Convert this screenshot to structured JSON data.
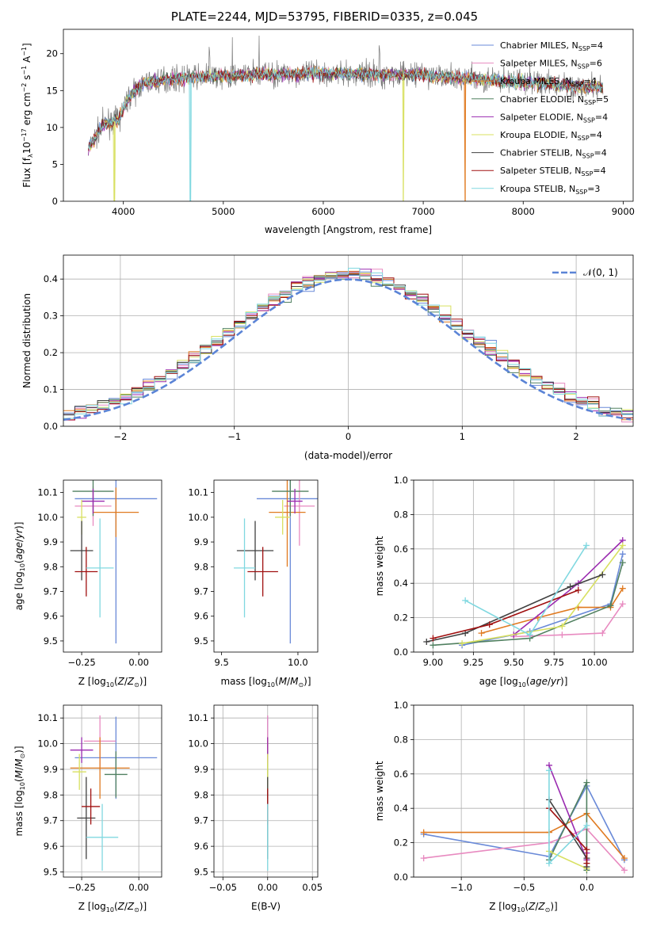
{
  "title": "PLATE=2244, MJD=53795, FIBERID=0335, z=0.045",
  "model_colors": {
    "Chabrier MILES": "#6a8ad8",
    "Salpeter MILES": "#e88ac0",
    "Kroupa MILES": "#e07a20",
    "Chabrier ELODIE": "#508060",
    "Salpeter ELODIE": "#9a2ab0",
    "Kroupa ELODIE": "#d8e060",
    "Chabrier STELIB": "#404040",
    "Salpeter STELIB": "#a01010",
    "Kroupa STELIB": "#80d8e0"
  },
  "chart_data": [
    {
      "id": "spectrum",
      "type": "line",
      "title": "PLATE=2244, MJD=53795, FIBERID=0335, z=0.045",
      "xlabel": "wavelength [Angstrom, rest frame]",
      "ylabel": "Flux [f_λ10^-17 erg cm^-2 s^-1 A^-1]",
      "xlim": [
        3400,
        9100
      ],
      "ylim": [
        0,
        23.3
      ],
      "xticks": [
        4000,
        5000,
        6000,
        7000,
        8000,
        9000
      ],
      "yticks": [
        0,
        5,
        10,
        15,
        20
      ],
      "grid": false,
      "legend_position": "top-right",
      "legend": [
        {
          "label": "Chabrier MILES",
          "nssp": "4"
        },
        {
          "label": "Salpeter MILES",
          "nssp": "6"
        },
        {
          "label": "Kroupa MILES",
          "nssp": "4"
        },
        {
          "label": "Chabrier ELODIE",
          "nssp": "5"
        },
        {
          "label": "Salpeter ELODIE",
          "nssp": "4"
        },
        {
          "label": "Kroupa ELODIE",
          "nssp": "4"
        },
        {
          "label": "Chabrier STELIB",
          "nssp": "4"
        },
        {
          "label": "Salpeter STELIB",
          "nssp": "4"
        },
        {
          "label": "Kroupa STELIB",
          "nssp": "3"
        }
      ],
      "continuum": {
        "wavelength": [
          3650,
          3800,
          3950,
          4050,
          4200,
          4400,
          4700,
          5000,
          5400,
          5800,
          6200,
          6600,
          7000,
          7400,
          7800,
          8200,
          8600,
          8800
        ],
        "flux": [
          7,
          10.5,
          11,
          14,
          16,
          16.5,
          16.8,
          17,
          17.2,
          17.3,
          17.3,
          17.2,
          17.1,
          16.7,
          16.3,
          16,
          15.5,
          15.3
        ]
      },
      "dips": [
        {
          "model": "Kroupa ELODIE",
          "wavelength": 3910
        },
        {
          "model": "Kroupa STELIB",
          "wavelength": 4670
        },
        {
          "model": "Kroupa ELODIE",
          "wavelength": 6800
        },
        {
          "model": "Kroupa MILES",
          "wavelength": 7420
        }
      ]
    },
    {
      "id": "residuals",
      "type": "histogram",
      "xlabel": "(data-model)/error",
      "ylabel": "Normed distribution",
      "xlim": [
        -2.5,
        2.5
      ],
      "ylim": [
        0,
        0.465
      ],
      "xticks": [
        -2,
        -1,
        0,
        1,
        2
      ],
      "yticks": [
        0.0,
        0.1,
        0.2,
        0.3,
        0.4
      ],
      "grid": true,
      "legend_position": "top-right",
      "reference_curve": {
        "label": "𝒩(0, 1)",
        "mean": 0,
        "sigma": 1,
        "color": "#5b84d6"
      },
      "bin_width": 0.1
    },
    {
      "id": "age-vs-z",
      "type": "errorbar",
      "xlabel": "Z [log10(Z/Z⊙)]",
      "ylabel": "age [log10(age/yr)]",
      "xlim": [
        -0.33,
        0.1
      ],
      "ylim": [
        9.455,
        10.15
      ],
      "xticks": [
        -0.25,
        0.0
      ],
      "yticks": [
        9.5,
        9.6,
        9.7,
        9.8,
        9.9,
        10.0,
        10.1
      ],
      "grid": false,
      "points": [
        {
          "model": "Chabrier MILES",
          "x": -0.1,
          "xerr": 0.18,
          "y": 10.075,
          "yerr": 0.585
        },
        {
          "model": "Salpeter MILES",
          "x": -0.2,
          "xerr": 0.08,
          "y": 10.045,
          "yerr": 0.08
        },
        {
          "model": "Kroupa MILES",
          "x": -0.1,
          "xerr": 0.1,
          "y": 10.02,
          "yerr": 0.1
        },
        {
          "model": "Chabrier ELODIE",
          "x": -0.2,
          "xerr": 0.09,
          "y": 10.105,
          "yerr": 0.1
        },
        {
          "model": "Salpeter ELODIE",
          "x": -0.2,
          "xerr": 0.05,
          "y": 10.065,
          "yerr": 0.05
        },
        {
          "model": "Kroupa ELODIE",
          "x": -0.25,
          "xerr": 0.02,
          "y": 10.0,
          "yerr": 0.07
        },
        {
          "model": "Chabrier STELIB",
          "x": -0.25,
          "xerr": 0.05,
          "y": 9.865,
          "yerr": 0.12
        },
        {
          "model": "Salpeter STELIB",
          "x": -0.23,
          "xerr": 0.05,
          "y": 9.78,
          "yerr": 0.1
        },
        {
          "model": "Kroupa STELIB",
          "x": -0.17,
          "xerr": 0.06,
          "y": 9.795,
          "yerr": 0.2
        }
      ]
    },
    {
      "id": "age-vs-mass",
      "type": "errorbar",
      "xlabel": "mass [log10(M/M⊙)]",
      "ylabel": "",
      "xlim": [
        9.45,
        10.13
      ],
      "ylim": [
        9.455,
        10.15
      ],
      "xticks": [
        9.5,
        10.0
      ],
      "yticks": [
        9.5,
        9.6,
        9.7,
        9.8,
        9.9,
        10.0,
        10.1
      ],
      "grid": false,
      "points": [
        {
          "model": "Chabrier MILES",
          "x": 9.95,
          "xerr": 0.22,
          "y": 10.075,
          "yerr": 0.585
        },
        {
          "model": "Salpeter MILES",
          "x": 10.01,
          "xerr": 0.1,
          "y": 10.045,
          "yerr": 0.16
        },
        {
          "model": "Kroupa MILES",
          "x": 9.93,
          "xerr": 0.12,
          "y": 10.02,
          "yerr": 0.22
        },
        {
          "model": "Chabrier ELODIE",
          "x": 9.95,
          "xerr": 0.12,
          "y": 10.105,
          "yerr": 0.1
        },
        {
          "model": "Salpeter ELODIE",
          "x": 9.98,
          "xerr": 0.05,
          "y": 10.065,
          "yerr": 0.05
        },
        {
          "model": "Kroupa ELODIE",
          "x": 9.9,
          "xerr": 0.05,
          "y": 10.0,
          "yerr": 0.07
        },
        {
          "model": "Chabrier STELIB",
          "x": 9.72,
          "xerr": 0.12,
          "y": 9.865,
          "yerr": 0.12
        },
        {
          "model": "Salpeter STELIB",
          "x": 9.77,
          "xerr": 0.1,
          "y": 9.78,
          "yerr": 0.1
        },
        {
          "model": "Kroupa STELIB",
          "x": 9.65,
          "xerr": 0.07,
          "y": 9.795,
          "yerr": 0.2
        }
      ]
    },
    {
      "id": "weight-vs-age",
      "type": "line",
      "xlabel": "age [log10(age/yr)]",
      "ylabel": "mass weight",
      "xlim": [
        8.88,
        10.24
      ],
      "ylim": [
        0,
        1.0
      ],
      "xticks": [
        9.0,
        9.25,
        9.5,
        9.75,
        10.0
      ],
      "yticks": [
        0.0,
        0.2,
        0.4,
        0.6,
        0.8,
        1.0
      ],
      "grid": true,
      "series": [
        {
          "model": "Chabrier MILES",
          "x": [
            9.18,
            9.6,
            10.1,
            10.175
          ],
          "y": [
            0.04,
            0.12,
            0.28,
            0.57
          ]
        },
        {
          "model": "Salpeter MILES",
          "x": [
            9.5,
            9.8,
            10.05,
            10.175
          ],
          "y": [
            0.09,
            0.1,
            0.11,
            0.28
          ]
        },
        {
          "model": "Kroupa MILES",
          "x": [
            9.3,
            9.65,
            9.9,
            10.1,
            10.175
          ],
          "y": [
            0.11,
            0.2,
            0.26,
            0.26,
            0.37
          ]
        },
        {
          "model": "Chabrier ELODIE",
          "x": [
            9.0,
            9.6,
            10.1,
            10.175
          ],
          "y": [
            0.04,
            0.08,
            0.27,
            0.52
          ]
        },
        {
          "model": "Salpeter ELODIE",
          "x": [
            9.5,
            9.9,
            10.175
          ],
          "y": [
            0.1,
            0.4,
            0.65
          ]
        },
        {
          "model": "Kroupa ELODIE",
          "x": [
            9.18,
            9.8,
            10.175
          ],
          "y": [
            0.05,
            0.15,
            0.62
          ]
        },
        {
          "model": "Chabrier STELIB",
          "x": [
            8.96,
            9.2,
            9.85,
            10.05
          ],
          "y": [
            0.06,
            0.11,
            0.38,
            0.45
          ]
        },
        {
          "model": "Salpeter STELIB",
          "x": [
            9.0,
            9.35,
            9.9
          ],
          "y": [
            0.08,
            0.16,
            0.36
          ]
        },
        {
          "model": "Kroupa STELIB",
          "x": [
            9.2,
            9.6,
            9.95
          ],
          "y": [
            0.3,
            0.1,
            0.62
          ]
        }
      ]
    },
    {
      "id": "mass-vs-z",
      "type": "errorbar",
      "xlabel": "Z [log10(Z/Z⊙)]",
      "ylabel": "mass [log10(M/M⊙)]",
      "xlim": [
        -0.33,
        0.1
      ],
      "ylim": [
        9.48,
        10.15
      ],
      "xticks": [
        -0.25,
        0.0
      ],
      "yticks": [
        9.5,
        9.6,
        9.7,
        9.8,
        9.9,
        10.0,
        10.1
      ],
      "grid": true,
      "points": [
        {
          "model": "Chabrier MILES",
          "x": -0.1,
          "xerr": 0.18,
          "y": 9.945,
          "yerr": 0.16
        },
        {
          "model": "Salpeter MILES",
          "x": -0.17,
          "xerr": 0.07,
          "y": 10.01,
          "yerr": 0.1
        },
        {
          "model": "Kroupa MILES",
          "x": -0.17,
          "xerr": 0.13,
          "y": 9.905,
          "yerr": 0.12
        },
        {
          "model": "Chabrier ELODIE",
          "x": -0.1,
          "xerr": 0.05,
          "y": 9.88,
          "yerr": 0.09
        },
        {
          "model": "Salpeter ELODIE",
          "x": -0.25,
          "xerr": 0.05,
          "y": 9.975,
          "yerr": 0.05
        },
        {
          "model": "Kroupa ELODIE",
          "x": -0.26,
          "xerr": 0.03,
          "y": 9.89,
          "yerr": 0.07
        },
        {
          "model": "Chabrier STELIB",
          "x": -0.23,
          "xerr": 0.04,
          "y": 9.71,
          "yerr": 0.16
        },
        {
          "model": "Salpeter STELIB",
          "x": -0.21,
          "xerr": 0.04,
          "y": 9.755,
          "yerr": 0.07
        },
        {
          "model": "Kroupa STELIB",
          "x": -0.16,
          "xerr": 0.07,
          "y": 9.635,
          "yerr": 0.13
        }
      ]
    },
    {
      "id": "mass-vs-ebv",
      "type": "errorbar",
      "xlabel": "E(B-V)",
      "ylabel": "",
      "xlim": [
        -0.06,
        0.056
      ],
      "ylim": [
        9.48,
        10.15
      ],
      "xticks": [
        -0.05,
        0.0,
        0.05
      ],
      "yticks": [
        9.5,
        9.6,
        9.7,
        9.8,
        9.9,
        10.0,
        10.1
      ],
      "grid": true,
      "points": [
        {
          "model": "Chabrier MILES",
          "x": 0,
          "xerr": 0,
          "y": 9.945,
          "yerr": 0.16
        },
        {
          "model": "Salpeter MILES",
          "x": 0,
          "xerr": 0,
          "y": 10.01,
          "yerr": 0.1
        },
        {
          "model": "Kroupa MILES",
          "x": 0,
          "xerr": 0,
          "y": 9.905,
          "yerr": 0.12
        },
        {
          "model": "Chabrier ELODIE",
          "x": 0,
          "xerr": 0,
          "y": 9.88,
          "yerr": 0.09
        },
        {
          "model": "Salpeter ELODIE",
          "x": 0,
          "xerr": 0,
          "y": 9.975,
          "yerr": 0.05
        },
        {
          "model": "Kroupa ELODIE",
          "x": 0,
          "xerr": 0,
          "y": 9.89,
          "yerr": 0.07
        },
        {
          "model": "Chabrier STELIB",
          "x": 0,
          "xerr": 0,
          "y": 9.71,
          "yerr": 0.16
        },
        {
          "model": "Salpeter STELIB",
          "x": 0,
          "xerr": 0,
          "y": 9.755,
          "yerr": 0.07
        },
        {
          "model": "Kroupa STELIB",
          "x": 0,
          "xerr": 0,
          "y": 9.635,
          "yerr": 0.13
        }
      ]
    },
    {
      "id": "weight-vs-z",
      "type": "line",
      "xlabel": "Z [log10(Z/Z⊙)]",
      "ylabel": "mass weight",
      "xlim": [
        -1.38,
        0.37
      ],
      "ylim": [
        0,
        1.0
      ],
      "xticks": [
        -1.0,
        -0.5,
        0.0
      ],
      "yticks": [
        0.0,
        0.2,
        0.4,
        0.6,
        0.8,
        1.0
      ],
      "grid": true,
      "series": [
        {
          "model": "Chabrier MILES",
          "x": [
            -1.3,
            -0.3,
            0.0,
            0.3
          ],
          "y": [
            0.25,
            0.12,
            0.53,
            0.1
          ]
        },
        {
          "model": "Salpeter MILES",
          "x": [
            -1.3,
            -0.3,
            0.0,
            0.3
          ],
          "y": [
            0.11,
            0.2,
            0.28,
            0.04
          ]
        },
        {
          "model": "Kroupa MILES",
          "x": [
            -1.3,
            -0.3,
            0.0,
            0.3
          ],
          "y": [
            0.26,
            0.26,
            0.37,
            0.11
          ]
        },
        {
          "model": "Chabrier ELODIE",
          "x": [
            -0.3,
            0.0,
            0.0
          ],
          "y": [
            0.1,
            0.55,
            0.04
          ]
        },
        {
          "model": "Salpeter ELODIE",
          "x": [
            -0.3,
            0.0,
            0.0
          ],
          "y": [
            0.65,
            0.1,
            0.14
          ]
        },
        {
          "model": "Kroupa ELODIE",
          "x": [
            -0.3,
            0.0
          ],
          "y": [
            0.15,
            0.05
          ]
        },
        {
          "model": "Chabrier STELIB",
          "x": [
            -0.3,
            0.0,
            0.0
          ],
          "y": [
            0.45,
            0.11,
            0.06
          ]
        },
        {
          "model": "Salpeter STELIB",
          "x": [
            -0.3,
            0.0,
            0.0
          ],
          "y": [
            0.4,
            0.16,
            0.08
          ]
        },
        {
          "model": "Kroupa STELIB",
          "x": [
            -0.3,
            -0.3,
            0.0
          ],
          "y": [
            0.62,
            0.08,
            0.3
          ]
        }
      ]
    }
  ]
}
